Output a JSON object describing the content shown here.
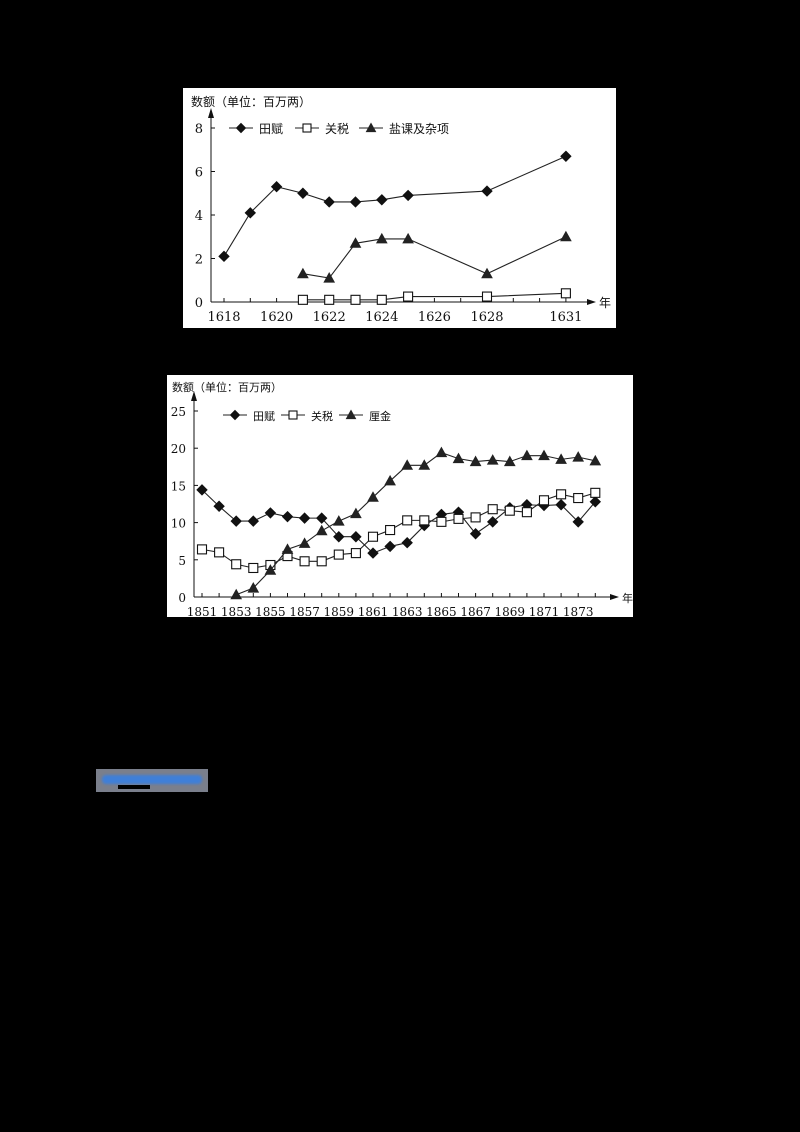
{
  "chart_data": [
    {
      "type": "line",
      "title": "",
      "ylabel": "数额（单位：百万两）",
      "xlabel": "年",
      "x_ticks": [
        "1618",
        "1620",
        "1622",
        "1624",
        "1626",
        "1628",
        "1631"
      ],
      "y_ticks": [
        0,
        2,
        4,
        6,
        8
      ],
      "ylim": [
        0,
        8
      ],
      "legend_position": "top",
      "grid": false,
      "series": [
        {
          "name": "田赋",
          "marker": "diamond-filled",
          "x": [
            1618,
            1619,
            1620,
            1621,
            1622,
            1623,
            1624,
            1625,
            1628,
            1631
          ],
          "values": [
            2.1,
            4.1,
            5.3,
            5.0,
            4.6,
            4.6,
            4.7,
            4.9,
            5.1,
            6.7
          ]
        },
        {
          "name": "关税",
          "marker": "square-open",
          "x": [
            1621,
            1622,
            1623,
            1624,
            1625,
            1628,
            1631
          ],
          "values": [
            0.1,
            0.1,
            0.1,
            0.1,
            0.25,
            0.25,
            0.4
          ]
        },
        {
          "name": "盐课及杂项",
          "marker": "triangle-filled",
          "x": [
            1621,
            1622,
            1623,
            1624,
            1625,
            1628,
            1631
          ],
          "values": [
            1.3,
            1.1,
            2.7,
            2.9,
            2.9,
            1.3,
            3.0
          ]
        }
      ]
    },
    {
      "type": "line",
      "title": "",
      "ylabel": "数额（单位：百万两）",
      "xlabel": "年",
      "x_ticks": [
        "1851",
        "1853",
        "1855",
        "1857",
        "1859",
        "1861",
        "1863",
        "1865",
        "1867",
        "1869",
        "1871",
        "1873"
      ],
      "y_ticks": [
        0,
        5,
        10,
        15,
        20,
        25
      ],
      "ylim": [
        0,
        25
      ],
      "legend_position": "top",
      "grid": false,
      "series": [
        {
          "name": "田赋",
          "marker": "diamond-filled",
          "x": [
            1851,
            1852,
            1853,
            1854,
            1855,
            1856,
            1857,
            1858,
            1859,
            1860,
            1861,
            1862,
            1863,
            1864,
            1865,
            1866,
            1867,
            1868,
            1869,
            1870,
            1871,
            1872,
            1873,
            1874
          ],
          "values": [
            14.4,
            12.2,
            10.2,
            10.2,
            11.3,
            10.8,
            10.6,
            10.6,
            8.1,
            8.1,
            5.9,
            6.8,
            7.3,
            9.6,
            11.1,
            11.4,
            8.5,
            10.1,
            12.0,
            12.4,
            12.3,
            12.4,
            10.1,
            12.8
          ]
        },
        {
          "name": "关税",
          "marker": "square-open",
          "x": [
            1851,
            1852,
            1853,
            1854,
            1855,
            1856,
            1857,
            1858,
            1859,
            1860,
            1861,
            1862,
            1863,
            1864,
            1865,
            1866,
            1867,
            1868,
            1869,
            1870,
            1871,
            1872,
            1873,
            1874
          ],
          "values": [
            6.4,
            6.0,
            4.4,
            3.9,
            4.3,
            5.5,
            4.8,
            4.8,
            5.7,
            5.9,
            8.1,
            9.0,
            10.3,
            10.3,
            10.1,
            10.5,
            10.7,
            11.8,
            11.6,
            11.4,
            13.0,
            13.8,
            13.3,
            14.0
          ]
        },
        {
          "name": "厘金",
          "marker": "triangle-filled",
          "x": [
            1853,
            1854,
            1855,
            1856,
            1857,
            1858,
            1859,
            1860,
            1861,
            1862,
            1863,
            1864,
            1865,
            1866,
            1867,
            1868,
            1869,
            1870,
            1871,
            1872,
            1873,
            1874
          ],
          "values": [
            0.3,
            1.2,
            3.6,
            6.4,
            7.2,
            8.9,
            10.2,
            11.2,
            13.4,
            15.6,
            17.7,
            17.7,
            19.4,
            18.6,
            18.2,
            18.4,
            18.2,
            19.0,
            19.0,
            18.5,
            18.8,
            18.3
          ]
        }
      ]
    }
  ],
  "charts": [
    {
      "ylabel": "数额（单位：百万两）",
      "xlabel": "年",
      "legend": [
        "田赋",
        "关税",
        "盐课及杂项"
      ]
    },
    {
      "ylabel": "数额（单位：百万两）",
      "xlabel": "年",
      "legend": [
        "田赋",
        "关税",
        "厘金"
      ]
    }
  ],
  "redacted_link": {
    "color": "#3f7fd8"
  }
}
